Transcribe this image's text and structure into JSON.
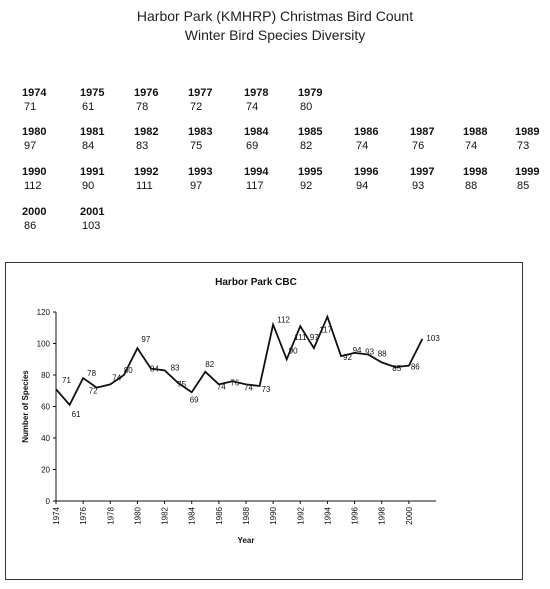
{
  "header": {
    "title": "Harbor Park (KMHRP) Christmas Bird Count",
    "subtitle": "Winter Bird Species Diversity"
  },
  "year_table": [
    {
      "year": "1974",
      "count": "71"
    },
    {
      "year": "1975",
      "count": "61"
    },
    {
      "year": "1976",
      "count": "78"
    },
    {
      "year": "1977",
      "count": "72"
    },
    {
      "year": "1978",
      "count": "74"
    },
    {
      "year": "1979",
      "count": "80"
    },
    {
      "year": "1980",
      "count": "97"
    },
    {
      "year": "1981",
      "count": "84"
    },
    {
      "year": "1982",
      "count": "83"
    },
    {
      "year": "1983",
      "count": "75"
    },
    {
      "year": "1984",
      "count": "69"
    },
    {
      "year": "1985",
      "count": "82"
    },
    {
      "year": "1986",
      "count": "74"
    },
    {
      "year": "1987",
      "count": "76"
    },
    {
      "year": "1988",
      "count": "74"
    },
    {
      "year": "1989",
      "count": "73"
    },
    {
      "year": "1990",
      "count": "112"
    },
    {
      "year": "1991",
      "count": "90"
    },
    {
      "year": "1992",
      "count": "111"
    },
    {
      "year": "1993",
      "count": "97"
    },
    {
      "year": "1994",
      "count": "117"
    },
    {
      "year": "1995",
      "count": "92"
    },
    {
      "year": "1996",
      "count": "94"
    },
    {
      "year": "1997",
      "count": "93"
    },
    {
      "year": "1998",
      "count": "88"
    },
    {
      "year": "1999",
      "count": "85"
    },
    {
      "year": "2000",
      "count": "86"
    },
    {
      "year": "2001",
      "count": "103"
    }
  ],
  "chart_data": {
    "type": "line",
    "title": "Harbor Park CBC",
    "xlabel": "Year",
    "ylabel": "Number of Species",
    "x": [
      1974,
      1975,
      1976,
      1977,
      1978,
      1979,
      1980,
      1981,
      1982,
      1983,
      1984,
      1985,
      1986,
      1987,
      1988,
      1989,
      1990,
      1991,
      1992,
      1993,
      1994,
      1995,
      1996,
      1997,
      1998,
      1999,
      2000,
      2001
    ],
    "series": [
      {
        "values": [
          71,
          61,
          78,
          72,
          74,
          80,
          97,
          84,
          83,
          75,
          69,
          82,
          74,
          76,
          74,
          73,
          112,
          90,
          111,
          97,
          117,
          92,
          94,
          93,
          88,
          85,
          86,
          103
        ]
      }
    ],
    "ylim": [
      0,
      120
    ],
    "yticks": [
      0,
      20,
      40,
      60,
      80,
      100,
      120
    ],
    "xlim": [
      1974,
      2002
    ],
    "xticks": [
      1974,
      1976,
      1978,
      1980,
      1982,
      1984,
      1986,
      1988,
      1990,
      1992,
      1994,
      1996,
      1998,
      2000
    ],
    "grid": false,
    "legend": "none",
    "line_color": "#111111"
  }
}
